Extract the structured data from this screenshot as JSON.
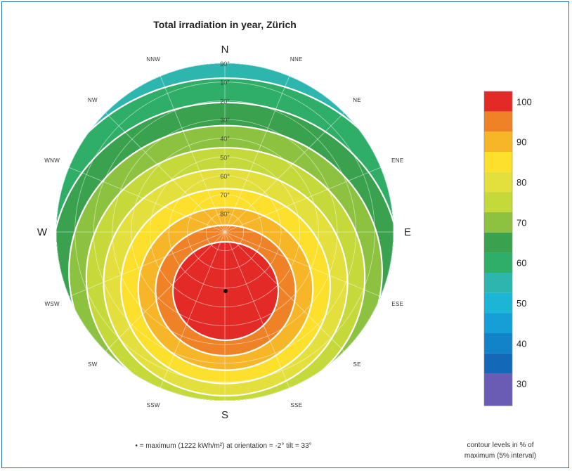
{
  "chart_data": {
    "type": "polar contour",
    "title": "Total irradiation in year, Zürich",
    "directions": [
      {
        "label": "N",
        "az": 0,
        "big": true
      },
      {
        "label": "NNE",
        "az": 22.5,
        "big": false
      },
      {
        "label": "NE",
        "az": 45,
        "big": false
      },
      {
        "label": "ENE",
        "az": 67.5,
        "big": false
      },
      {
        "label": "E",
        "az": 90,
        "big": true
      },
      {
        "label": "ESE",
        "az": 112.5,
        "big": false
      },
      {
        "label": "SE",
        "az": 135,
        "big": false
      },
      {
        "label": "SSE",
        "az": 157.5,
        "big": false
      },
      {
        "label": "S",
        "az": 180,
        "big": true
      },
      {
        "label": "SSW",
        "az": 202.5,
        "big": false
      },
      {
        "label": "SW",
        "az": 225,
        "big": false
      },
      {
        "label": "WSW",
        "az": 247.5,
        "big": false
      },
      {
        "label": "W",
        "az": 270,
        "big": true
      },
      {
        "label": "WNW",
        "az": 292.5,
        "big": false
      },
      {
        "label": "NW",
        "az": 315,
        "big": false
      },
      {
        "label": "NNW",
        "az": 337.5,
        "big": false
      }
    ],
    "altitude_labels": [
      "90°",
      "80°",
      "70°",
      "60°",
      "50°",
      "40°",
      "30°",
      "20°",
      "10°"
    ],
    "contour_levels": [
      30,
      35,
      40,
      45,
      50,
      55,
      60,
      65,
      70,
      75,
      80,
      85,
      90,
      95,
      100
    ],
    "colorbar_ticks": [
      30,
      40,
      50,
      60,
      70,
      80,
      90,
      100
    ],
    "colors": [
      "#6a5bb5",
      "#1468b8",
      "#1283c8",
      "#169fd6",
      "#1bb5d5",
      "#2db6ad",
      "#2fae68",
      "#3aa24e",
      "#8cc23f",
      "#c6d93b",
      "#e3df3c",
      "#fde02c",
      "#f7b628",
      "#ef8227",
      "#e42a27"
    ],
    "maximum": {
      "value_kwh_m2": 1222,
      "orientation_deg": -2,
      "tilt_deg": 33
    },
    "legend_note": "contour levels in % of maximum (5% interval)"
  },
  "footnote": "• = maximum (1222 kWh/m²) at orientation = -2° tilt = 33°",
  "legend_note_line1": "contour levels in % of",
  "legend_note_line2": "maximum (5% interval)"
}
